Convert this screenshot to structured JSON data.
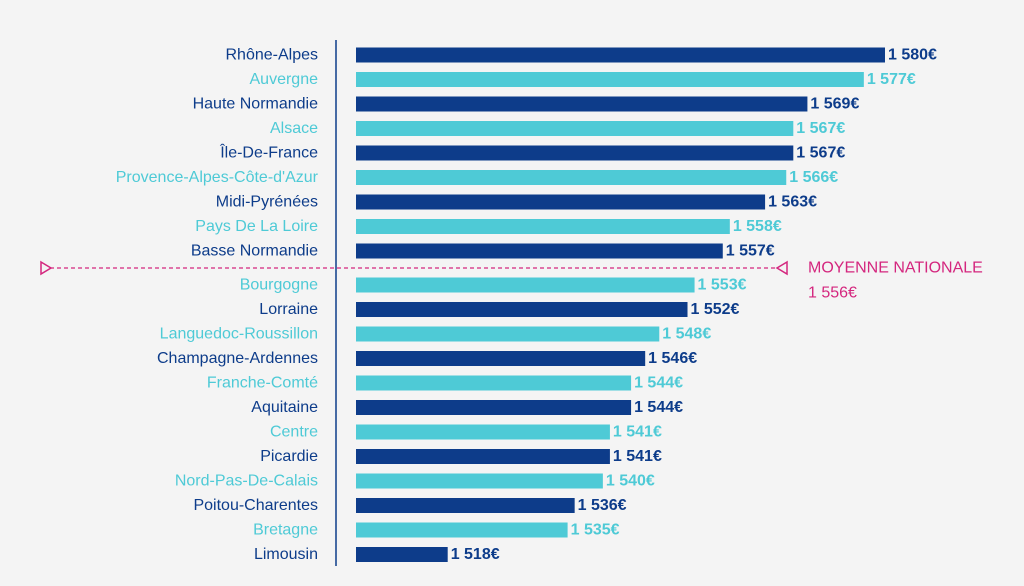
{
  "colors": {
    "dark": "#0d3c8a",
    "light": "#4ecad6",
    "avg": "#d4267e",
    "axis": "#0d3c8a",
    "background": "#f4f4f4"
  },
  "chart_data": {
    "type": "bar",
    "orientation": "horizontal",
    "title": "",
    "xlabel": "",
    "ylabel": "",
    "xlim": [
      1505,
      1585
    ],
    "grid": false,
    "categories": [
      "Rhône-Alpes",
      "Auvergne",
      "Haute Normandie",
      "Alsace",
      "Île-De-France",
      "Provence-Alpes-Côte-d'Azur",
      "Midi-Pyrénées",
      "Pays De La Loire",
      "Basse Normandie",
      "Bourgogne",
      "Lorraine",
      "Languedoc-Roussillon",
      "Champagne-Ardennes",
      "Franche-Comté",
      "Aquitaine",
      "Centre",
      "Picardie",
      "Nord-Pas-De-Calais",
      "Poitou-Charentes",
      "Bretagne",
      "Limousin"
    ],
    "values": [
      1580,
      1577,
      1569,
      1567,
      1567,
      1566,
      1563,
      1558,
      1557,
      1553,
      1552,
      1548,
      1546,
      1544,
      1544,
      1541,
      1541,
      1540,
      1536,
      1535,
      1518
    ],
    "value_labels": [
      "1 580€",
      "1 577€",
      "1 569€",
      "1 567€",
      "1 567€",
      "1 566€",
      "1 563€",
      "1 558€",
      "1 557€",
      "1 553€",
      "1 552€",
      "1 548€",
      "1 546€",
      "1 544€",
      "1 544€",
      "1 541€",
      "1 541€",
      "1 540€",
      "1 536€",
      "1 535€",
      "1 518€"
    ],
    "bar_colors": [
      "dark",
      "light",
      "dark",
      "light",
      "dark",
      "light",
      "dark",
      "light",
      "dark",
      "light",
      "dark",
      "light",
      "dark",
      "light",
      "dark",
      "light",
      "dark",
      "light",
      "dark",
      "light",
      "dark"
    ],
    "reference_line": {
      "value": 1556,
      "label": "MOYENNE NATIONALE",
      "value_label": "1 556€"
    }
  }
}
